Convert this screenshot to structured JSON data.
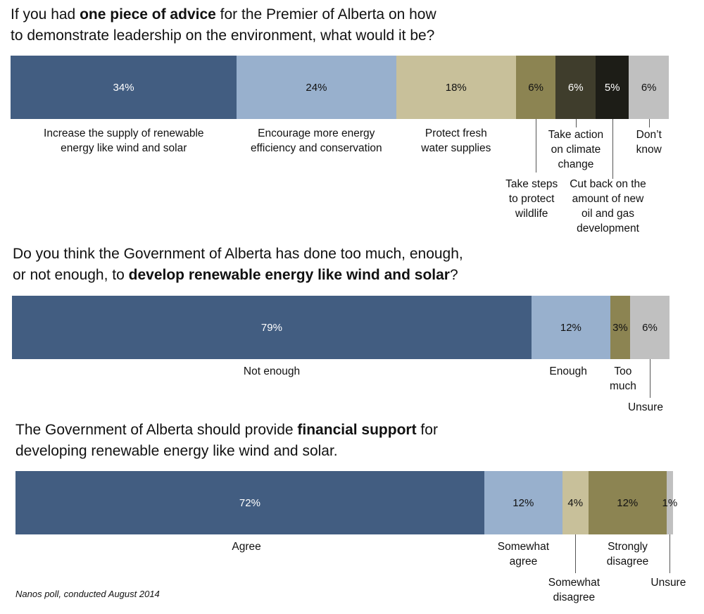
{
  "chart_data": [
    {
      "type": "bar",
      "orientation": "horizontal-stacked",
      "title_parts": [
        "If you had ",
        "one piece of advice",
        " for the Premier of Alberta on how",
        "to demonstrate leadership on the environment, what would it be?"
      ],
      "segments": [
        {
          "value": 34,
          "label": "34%",
          "color": "#425d81",
          "text_color": "#ffffff",
          "category_lines": [
            "Increase the supply of renewable",
            "energy like wind and solar"
          ]
        },
        {
          "value": 24,
          "label": "24%",
          "color": "#98b0cd",
          "text_color": "#111111",
          "category_lines": [
            "Encourage more energy",
            "efficiency and conservation"
          ]
        },
        {
          "value": 18,
          "label": "18%",
          "color": "#c8c09a",
          "text_color": "#111111",
          "category_lines": [
            "Protect fresh",
            "water supplies"
          ]
        },
        {
          "value": 6,
          "label": "6%",
          "color": "#8c8452",
          "text_color": "#111111",
          "category_lines": [
            "Take steps",
            "to protect",
            "wildlife"
          ]
        },
        {
          "value": 6,
          "label": "6%",
          "color": "#3f3d2c",
          "text_color": "#ffffff",
          "category_lines": [
            "Take action",
            "on climate",
            "change"
          ]
        },
        {
          "value": 5,
          "label": "5%",
          "color": "#1d1d17",
          "text_color": "#ffffff",
          "category_lines": [
            "Cut back on the",
            "amount of new",
            "oil and gas",
            "development"
          ]
        },
        {
          "value": 6,
          "label": "6%",
          "color": "#c0c0c0",
          "text_color": "#111111",
          "category_lines": [
            "Don’t",
            "know"
          ]
        }
      ]
    },
    {
      "type": "bar",
      "orientation": "horizontal-stacked",
      "title_parts": [
        "Do you think the Government of Alberta has done too much, enough,",
        "or not enough, to ",
        "develop renewable energy like wind and solar",
        "?"
      ],
      "segments": [
        {
          "value": 79,
          "label": "79%",
          "color": "#425d81",
          "text_color": "#ffffff",
          "category_lines": [
            "Not enough"
          ]
        },
        {
          "value": 12,
          "label": "12%",
          "color": "#98b0cd",
          "text_color": "#111111",
          "category_lines": [
            "Enough"
          ]
        },
        {
          "value": 3,
          "label": "3%",
          "color": "#8c8452",
          "text_color": "#111111",
          "category_lines": [
            "Too",
            "much"
          ]
        },
        {
          "value": 6,
          "label": "6%",
          "color": "#c0c0c0",
          "text_color": "#111111",
          "category_lines": [
            "Unsure"
          ]
        }
      ]
    },
    {
      "type": "bar",
      "orientation": "horizontal-stacked",
      "title_parts": [
        "The Government of Alberta should provide ",
        "financial support",
        " for",
        "developing renewable energy like wind and solar."
      ],
      "segments": [
        {
          "value": 72,
          "label": "72%",
          "color": "#425d81",
          "text_color": "#ffffff",
          "category_lines": [
            "Agree"
          ]
        },
        {
          "value": 12,
          "label": "12%",
          "color": "#98b0cd",
          "text_color": "#111111",
          "category_lines": [
            "Somewhat",
            "agree"
          ]
        },
        {
          "value": 4,
          "label": "4%",
          "color": "#c8c09a",
          "text_color": "#111111",
          "category_lines": [
            "Somewhat",
            "disagree"
          ]
        },
        {
          "value": 12,
          "label": "12%",
          "color": "#8c8452",
          "text_color": "#111111",
          "category_lines": [
            "Strongly",
            "disagree"
          ]
        },
        {
          "value": 1,
          "label": "1%",
          "color": "#c0c0c0",
          "text_color": "#111111",
          "category_lines": [
            "Unsure"
          ]
        }
      ]
    }
  ],
  "source_note": "Nanos poll, conducted August 2014"
}
